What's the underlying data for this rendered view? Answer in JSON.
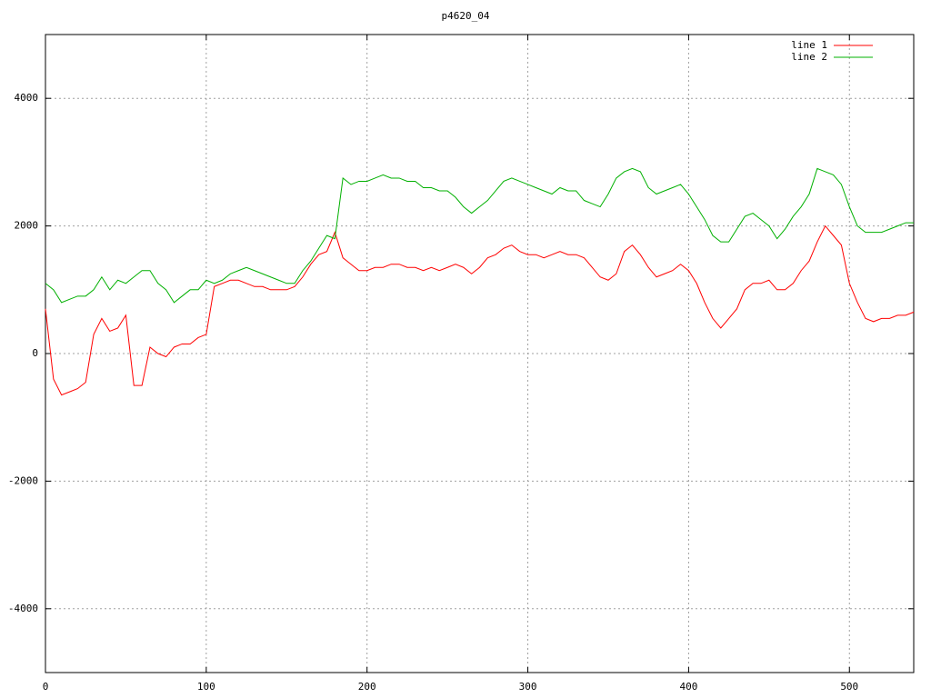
{
  "chart_data": {
    "type": "line",
    "title": "p4620_04",
    "x": [
      0,
      5,
      10,
      15,
      20,
      25,
      30,
      35,
      40,
      45,
      50,
      55,
      60,
      65,
      70,
      75,
      80,
      85,
      90,
      95,
      100,
      105,
      110,
      115,
      120,
      125,
      130,
      135,
      140,
      145,
      150,
      155,
      160,
      165,
      170,
      175,
      180,
      185,
      190,
      195,
      200,
      205,
      210,
      215,
      220,
      225,
      230,
      235,
      240,
      245,
      250,
      255,
      260,
      265,
      270,
      275,
      280,
      285,
      290,
      295,
      300,
      305,
      310,
      315,
      320,
      325,
      330,
      335,
      340,
      345,
      350,
      355,
      360,
      365,
      370,
      375,
      380,
      385,
      390,
      395,
      400,
      405,
      410,
      415,
      420,
      425,
      430,
      435,
      440,
      445,
      450,
      455,
      460,
      465,
      470,
      475,
      480,
      485,
      490,
      495,
      500,
      505,
      510,
      515,
      520,
      525,
      530,
      535,
      540
    ],
    "series": [
      {
        "name": "line 1",
        "color": "#ff0000",
        "values": [
          700,
          -400,
          -650,
          -600,
          -550,
          -450,
          300,
          550,
          350,
          400,
          600,
          -500,
          -500,
          100,
          0,
          -50,
          100,
          150,
          150,
          250,
          300,
          1050,
          1100,
          1150,
          1150,
          1100,
          1050,
          1050,
          1000,
          1000,
          1000,
          1050,
          1200,
          1400,
          1550,
          1600,
          1900,
          1500,
          1400,
          1300,
          1300,
          1350,
          1350,
          1400,
          1400,
          1350,
          1350,
          1300,
          1350,
          1300,
          1350,
          1400,
          1350,
          1250,
          1350,
          1500,
          1550,
          1650,
          1700,
          1600,
          1550,
          1550,
          1500,
          1550,
          1600,
          1550,
          1550,
          1500,
          1350,
          1200,
          1150,
          1250,
          1600,
          1700,
          1550,
          1350,
          1200,
          1250,
          1300,
          1400,
          1300,
          1100,
          800,
          550,
          400,
          550,
          700,
          1000,
          1100,
          1100,
          1150,
          1000,
          1000,
          1100,
          1300,
          1450,
          1750,
          2000,
          1850,
          1700,
          1100,
          800,
          550,
          500,
          550,
          550,
          600,
          600,
          650
        ]
      },
      {
        "name": "line 2",
        "color": "#00b000",
        "values": [
          1100,
          1000,
          800,
          850,
          900,
          900,
          1000,
          1200,
          1000,
          1150,
          1100,
          1200,
          1300,
          1300,
          1100,
          1000,
          800,
          900,
          1000,
          1000,
          1150,
          1100,
          1150,
          1250,
          1300,
          1350,
          1300,
          1250,
          1200,
          1150,
          1100,
          1100,
          1300,
          1450,
          1650,
          1850,
          1800,
          2750,
          2650,
          2700,
          2700,
          2750,
          2800,
          2750,
          2750,
          2700,
          2700,
          2600,
          2600,
          2550,
          2550,
          2450,
          2300,
          2200,
          2300,
          2400,
          2550,
          2700,
          2750,
          2700,
          2650,
          2600,
          2550,
          2500,
          2600,
          2550,
          2550,
          2400,
          2350,
          2300,
          2500,
          2750,
          2850,
          2900,
          2850,
          2600,
          2500,
          2550,
          2600,
          2650,
          2500,
          2300,
          2100,
          1850,
          1750,
          1750,
          1950,
          2150,
          2200,
          2100,
          2000,
          1800,
          1950,
          2150,
          2300,
          2500,
          2900,
          2850,
          2800,
          2650,
          2300,
          2000,
          1900,
          1900,
          1900,
          1950,
          2000,
          2050,
          2050
        ]
      }
    ],
    "xlim": [
      0,
      540
    ],
    "ylim": [
      -5000,
      5000
    ],
    "xticks": [
      0,
      100,
      200,
      300,
      400,
      500
    ],
    "yticks": [
      -4000,
      -2000,
      0,
      2000,
      4000
    ],
    "grid": true,
    "legend": "top-right"
  }
}
